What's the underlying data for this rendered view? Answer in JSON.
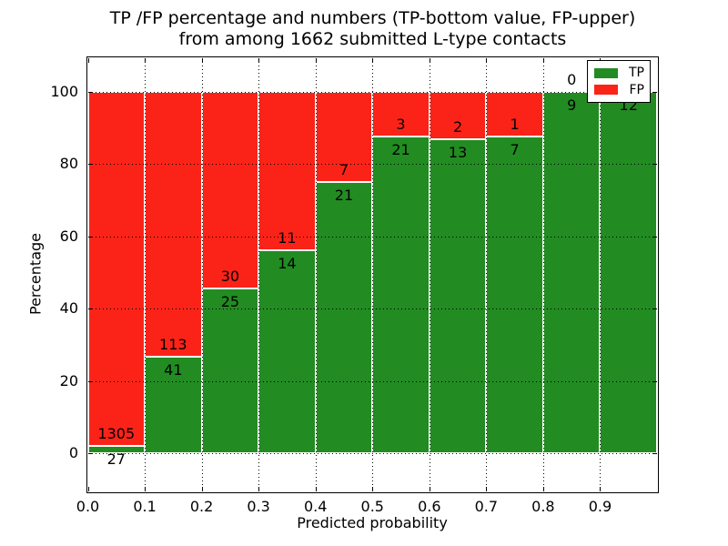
{
  "title": {
    "line1": "TP /FP percentage and numbers (TP-bottom value, FP-upper)",
    "line2": "from among 1662 submitted L-type contacts"
  },
  "axes": {
    "xlabel": "Predicted probability",
    "ylabel": "Percentage",
    "x_tick_labels": [
      "0.0",
      "0.1",
      "0.2",
      "0.3",
      "0.4",
      "0.5",
      "0.6",
      "0.7",
      "0.8",
      "0.9"
    ],
    "y_tick_labels": [
      "0",
      "20",
      "40",
      "60",
      "80",
      "100"
    ],
    "y_tick_values": [
      0,
      20,
      40,
      60,
      80,
      100
    ]
  },
  "legend": {
    "items": [
      {
        "label": "TP",
        "color": "#228b22"
      },
      {
        "label": "FP",
        "color": "#fb2318"
      }
    ]
  },
  "chart_data": {
    "type": "bar",
    "stacked": true,
    "orientation": "vertical",
    "title": "TP /FP percentage and numbers (TP-bottom value, FP-upper) from among 1662 submitted L-type contacts",
    "xlabel": "Predicted probability",
    "ylabel": "Percentage",
    "total_submitted_contacts": 1662,
    "bins": [
      "0.0-0.1",
      "0.1-0.2",
      "0.2-0.3",
      "0.3-0.4",
      "0.4-0.5",
      "0.5-0.6",
      "0.6-0.7",
      "0.7-0.8",
      "0.8-0.9",
      "0.9-1.0"
    ],
    "series": [
      {
        "name": "TP",
        "color": "#228b22",
        "counts": [
          27,
          41,
          25,
          14,
          21,
          21,
          13,
          7,
          9,
          12
        ],
        "percent": [
          2.03,
          26.62,
          45.45,
          56.0,
          75.0,
          87.5,
          86.67,
          87.5,
          100.0,
          100.0
        ]
      },
      {
        "name": "FP",
        "color": "#fb2318",
        "counts": [
          1305,
          113,
          30,
          11,
          7,
          3,
          2,
          1,
          0,
          0
        ],
        "percent": [
          97.97,
          73.38,
          54.55,
          44.0,
          25.0,
          12.5,
          13.33,
          12.5,
          0.0,
          0.0
        ]
      }
    ],
    "bar_edge_color": "#ffffff",
    "xlim": [
      0.0,
      1.0
    ],
    "ylim": [
      -10.8,
      109.5
    ],
    "grid": {
      "style": "dotted",
      "x": true,
      "y": true
    },
    "legend_position": "upper right",
    "annotation_note": "FP count above segment boundary, TP count below; FP label of last bin hidden behind legend"
  }
}
